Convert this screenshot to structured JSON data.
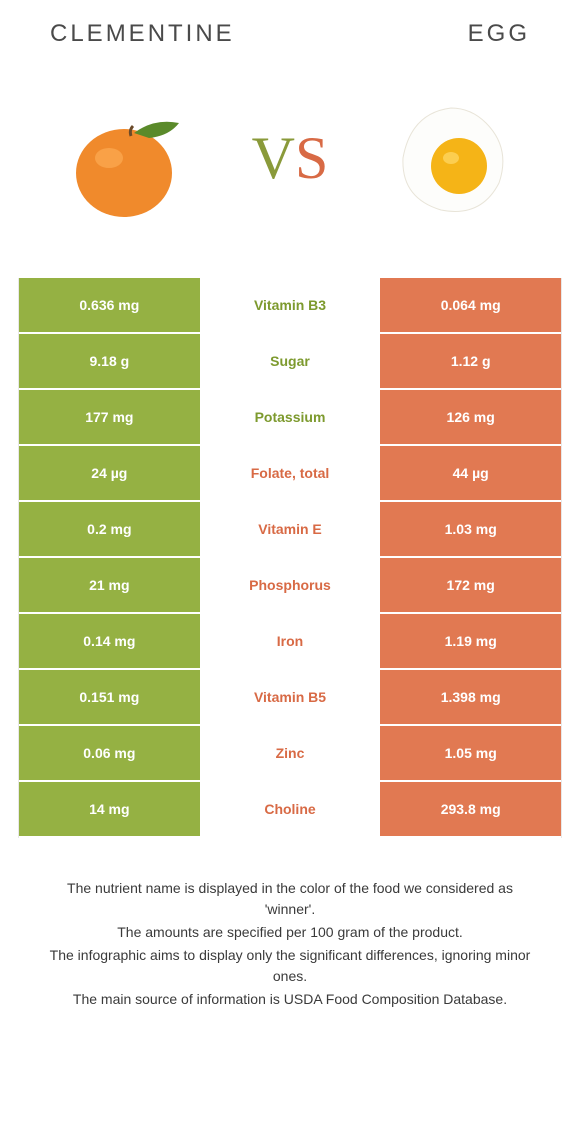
{
  "colors": {
    "green": "#95b143",
    "green_text": "#7d9a2e",
    "orange": "#e17952",
    "orange_text": "#d86a45",
    "white": "#ffffff"
  },
  "header": {
    "left_title": "CLEMENTINE",
    "right_title": "EGG"
  },
  "vs": {
    "v": "V",
    "s": "S"
  },
  "rows": [
    {
      "left": "0.636 mg",
      "mid": "Vitamin B3",
      "right": "0.064 mg",
      "winner": "left"
    },
    {
      "left": "9.18 g",
      "mid": "Sugar",
      "right": "1.12 g",
      "winner": "left"
    },
    {
      "left": "177 mg",
      "mid": "Potassium",
      "right": "126 mg",
      "winner": "left"
    },
    {
      "left": "24 µg",
      "mid": "Folate, total",
      "right": "44 µg",
      "winner": "right"
    },
    {
      "left": "0.2 mg",
      "mid": "Vitamin E",
      "right": "1.03 mg",
      "winner": "right"
    },
    {
      "left": "21 mg",
      "mid": "Phosphorus",
      "right": "172 mg",
      "winner": "right"
    },
    {
      "left": "0.14 mg",
      "mid": "Iron",
      "right": "1.19 mg",
      "winner": "right"
    },
    {
      "left": "0.151 mg",
      "mid": "Vitamin B5",
      "right": "1.398 mg",
      "winner": "right"
    },
    {
      "left": "0.06 mg",
      "mid": "Zinc",
      "right": "1.05 mg",
      "winner": "right"
    },
    {
      "left": "14 mg",
      "mid": "Choline",
      "right": "293.8 mg",
      "winner": "right"
    }
  ],
  "footer": {
    "line1": "The nutrient name is displayed in the color of the food we considered as 'winner'.",
    "line2": "The amounts are specified per 100 gram of the product.",
    "line3": "The infographic aims to display only the significant differences, ignoring minor ones.",
    "line4": "The main source of information is USDA Food Composition Database."
  }
}
